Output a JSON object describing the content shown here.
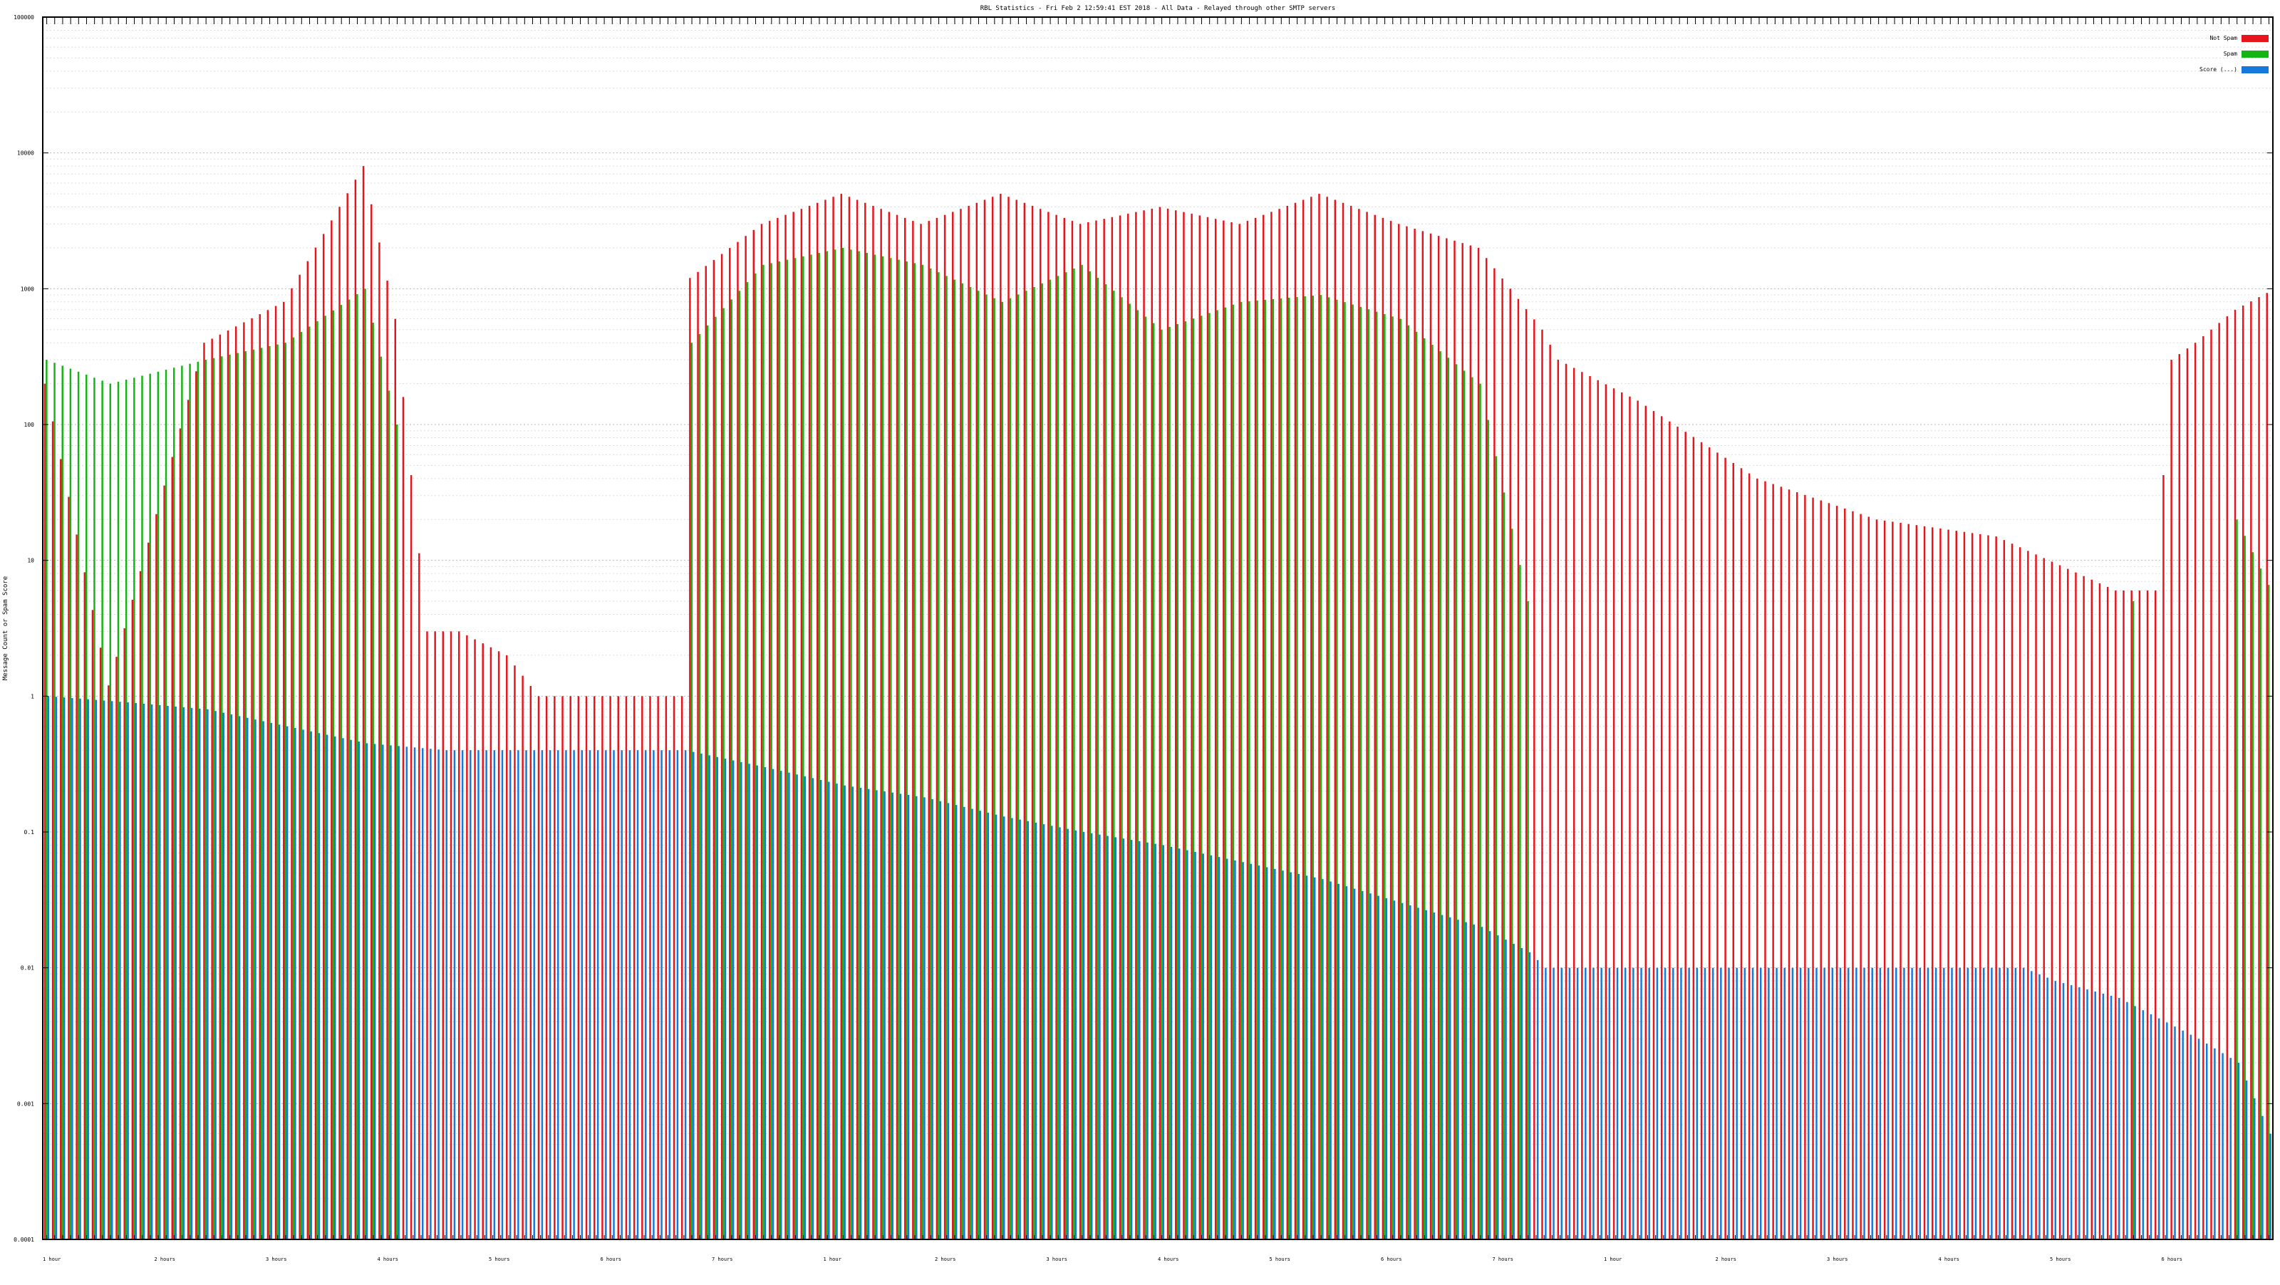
{
  "chart_data": {
    "type": "bar",
    "title": "RBL Statistics - Fri Feb  2 12:59:41 EST 2018 - All Data - Relayed through other SMTP servers",
    "xlabel": "",
    "ylabel": "Message Count or Spam Score",
    "yscale": "log",
    "ylim": [
      0.0001,
      100000
    ],
    "y_ticks": [
      {
        "value": 0.0001,
        "label": "0.0001"
      },
      {
        "value": 0.001,
        "label": "0.001"
      },
      {
        "value": 0.01,
        "label": "0.01"
      },
      {
        "value": 0.1,
        "label": "0.1"
      },
      {
        "value": 1,
        "label": "1"
      },
      {
        "value": 10,
        "label": "10"
      },
      {
        "value": 100,
        "label": "100"
      },
      {
        "value": 1000,
        "label": "1000"
      },
      {
        "value": 10000,
        "label": "10000"
      },
      {
        "value": 100000,
        "label": "100000"
      }
    ],
    "grid": true,
    "legend_position": "top-right",
    "category_count": 280,
    "series": [
      {
        "name": "Not Spam",
        "color": "#e8141c",
        "profile": [
          [
            0,
            200
          ],
          [
            8,
            1.2
          ],
          [
            20,
            400
          ],
          [
            30,
            800
          ],
          [
            40,
            8000
          ],
          [
            44,
            600
          ],
          [
            48,
            3
          ],
          [
            52,
            3
          ],
          [
            58,
            2
          ],
          [
            62,
            1
          ],
          [
            80,
            1
          ],
          [
            81,
            1200
          ],
          [
            90,
            3000
          ],
          [
            100,
            5000
          ],
          [
            110,
            3000
          ],
          [
            120,
            5000
          ],
          [
            130,
            3000
          ],
          [
            140,
            4000
          ],
          [
            150,
            3000
          ],
          [
            160,
            5000
          ],
          [
            170,
            3000
          ],
          [
            180,
            2000
          ],
          [
            188,
            500
          ],
          [
            190,
            300
          ],
          [
            200,
            150
          ],
          [
            215,
            40
          ],
          [
            230,
            20
          ],
          [
            245,
            15
          ],
          [
            260,
            6
          ],
          [
            265,
            6
          ],
          [
            267,
            300
          ],
          [
            270,
            400
          ],
          [
            275,
            700
          ],
          [
            280,
            1000
          ]
        ]
      },
      {
        "name": "Spam",
        "color": "#14b414",
        "profile": [
          [
            0,
            300
          ],
          [
            8,
            200
          ],
          [
            20,
            300
          ],
          [
            30,
            400
          ],
          [
            40,
            1000
          ],
          [
            44,
            100
          ],
          [
            48,
            0
          ],
          [
            80,
            0
          ],
          [
            81,
            400
          ],
          [
            90,
            1500
          ],
          [
            100,
            2000
          ],
          [
            110,
            1500
          ],
          [
            120,
            800
          ],
          [
            130,
            1500
          ],
          [
            140,
            500
          ],
          [
            150,
            800
          ],
          [
            160,
            900
          ],
          [
            170,
            600
          ],
          [
            180,
            200
          ],
          [
            186,
            5
          ],
          [
            188,
            0
          ],
          [
            260,
            0
          ],
          [
            262,
            5
          ],
          [
            265,
            0
          ],
          [
            275,
            20
          ],
          [
            280,
            5
          ]
        ]
      },
      {
        "name": "Score (...)",
        "color": "#1478dc",
        "profile": [
          [
            0,
            1
          ],
          [
            10,
            0.9
          ],
          [
            20,
            0.8
          ],
          [
            30,
            0.6
          ],
          [
            40,
            0.45
          ],
          [
            50,
            0.4
          ],
          [
            80,
            0.4
          ],
          [
            90,
            0.3
          ],
          [
            100,
            0.22
          ],
          [
            110,
            0.18
          ],
          [
            120,
            0.13
          ],
          [
            130,
            0.1
          ],
          [
            140,
            0.08
          ],
          [
            150,
            0.06
          ],
          [
            160,
            0.045
          ],
          [
            170,
            0.03
          ],
          [
            180,
            0.02
          ],
          [
            186,
            0.013
          ],
          [
            188,
            0.01
          ],
          [
            248,
            0.01
          ],
          [
            252,
            0.008
          ],
          [
            260,
            0.006
          ],
          [
            270,
            0.003
          ],
          [
            275,
            0.002
          ],
          [
            279,
            0.0006
          ],
          [
            280,
            0.0003
          ]
        ]
      }
    ],
    "x_label_rows": [
      "1 hour",
      "2 hours",
      "3 hours",
      "4 hours",
      "5 hours",
      "6 hours",
      "7 hours"
    ]
  }
}
